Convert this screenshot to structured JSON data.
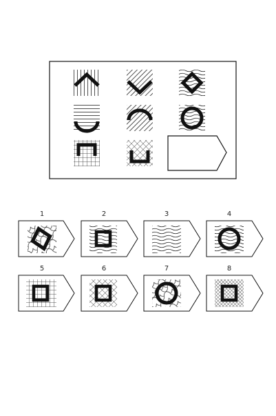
{
  "puzzle": {
    "matrix_cells": [
      {
        "row": 1,
        "col": 1,
        "background": "vertical-lines",
        "figure": "chevron-up"
      },
      {
        "row": 1,
        "col": 2,
        "background": "diagonal-lines",
        "figure": "chevron-down"
      },
      {
        "row": 1,
        "col": 3,
        "background": "wavy-lines",
        "figure": "diamond"
      },
      {
        "row": 2,
        "col": 1,
        "background": "horizontal-lines",
        "figure": "arc-up"
      },
      {
        "row": 2,
        "col": 2,
        "background": "diagonal-lines",
        "figure": "arc-down"
      },
      {
        "row": 2,
        "col": 3,
        "background": "wavy-lines",
        "figure": "circle"
      },
      {
        "row": 3,
        "col": 1,
        "background": "grid",
        "figure": "bracket-down"
      },
      {
        "row": 3,
        "col": 2,
        "background": "cross-hatch",
        "figure": "bracket-up"
      },
      {
        "row": 3,
        "col": 3,
        "background": "none",
        "figure": "missing"
      }
    ],
    "options": [
      {
        "number": "1",
        "background": "wavy-grid",
        "figure": "diamond"
      },
      {
        "number": "2",
        "background": "wavy-lines",
        "figure": "square"
      },
      {
        "number": "3",
        "background": "wavy-lines",
        "figure": "none"
      },
      {
        "number": "4",
        "background": "wavy-lines",
        "figure": "circle"
      },
      {
        "number": "5",
        "background": "grid",
        "figure": "square"
      },
      {
        "number": "6",
        "background": "cross-hatch",
        "figure": "square"
      },
      {
        "number": "7",
        "background": "wavy-grid",
        "figure": "circle"
      },
      {
        "number": "8",
        "background": "dense-cross-hatch",
        "figure": "square"
      }
    ]
  }
}
